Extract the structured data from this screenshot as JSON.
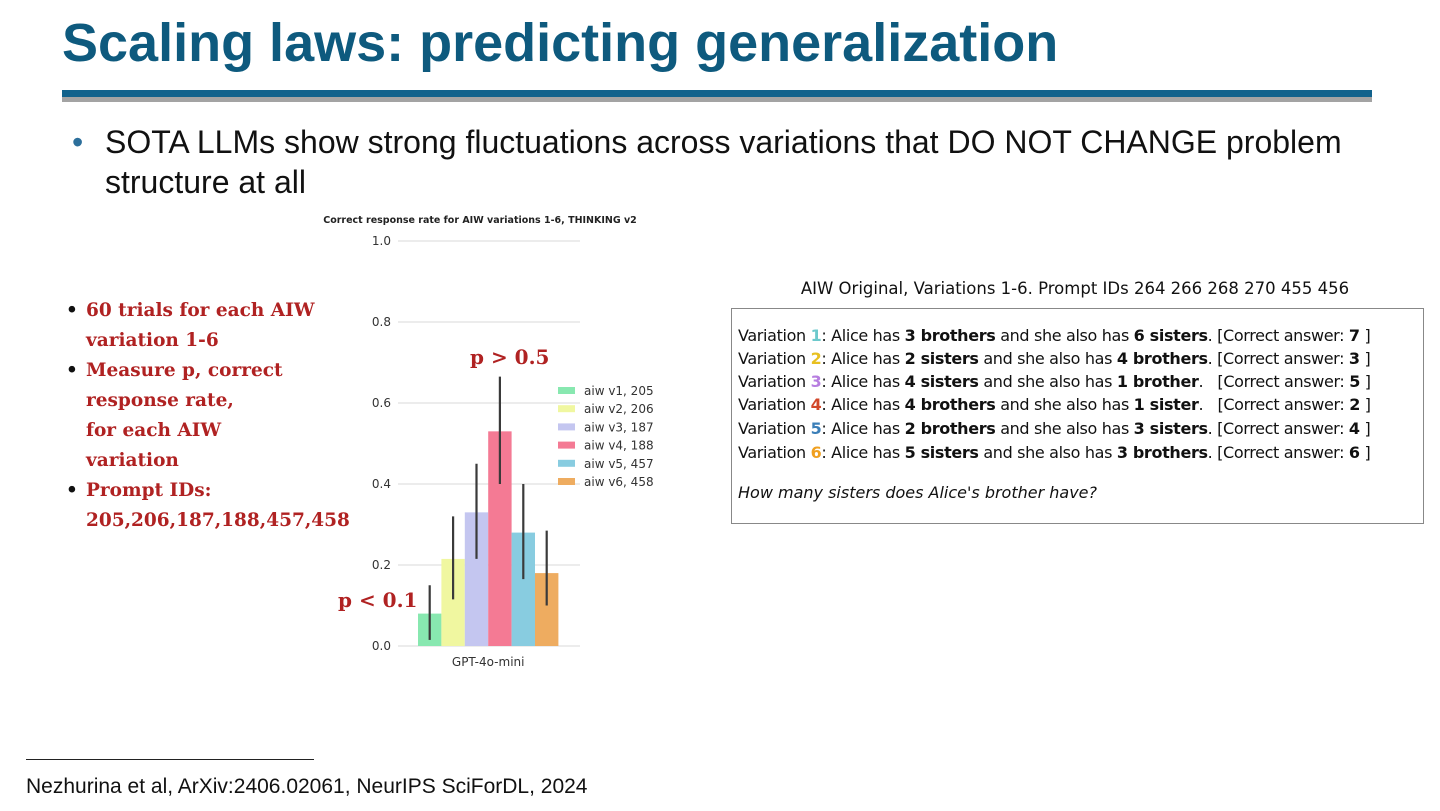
{
  "title": "Scaling laws: predicting generalization",
  "main_bullet": "SOTA LLMs show strong fluctuations across variations that DO NOT CHANGE problem structure at all",
  "notes": [
    {
      "lines": [
        "60 trials for each AIW",
        "variation 1-6"
      ]
    },
    {
      "lines": [
        "Measure p, correct",
        "response rate,",
        "for each AIW",
        "variation"
      ]
    },
    {
      "lines": [
        "Prompt IDs:",
        "205,206,187,188,457,458"
      ]
    }
  ],
  "annotations": {
    "high": "p > 0.5",
    "low": "p < 0.1"
  },
  "chart_data": {
    "type": "bar",
    "title": "Correct response rate for AIW variations 1-6, THINKING v2",
    "categories": [
      "GPT-4o-mini"
    ],
    "ylim": [
      0,
      1.0
    ],
    "yticks": [
      "0.0",
      "0.2",
      "0.4",
      "0.6",
      "0.8",
      "1.0"
    ],
    "grid": true,
    "legend_position": "right",
    "series": [
      {
        "name": "aiw v1, 205",
        "values": [
          0.08
        ],
        "err_low": [
          0.015
        ],
        "err_high": [
          0.15
        ],
        "color": "#88e8b0"
      },
      {
        "name": "aiw v2, 206",
        "values": [
          0.215
        ],
        "err_low": [
          0.115
        ],
        "err_high": [
          0.32
        ],
        "color": "#f0f7a0"
      },
      {
        "name": "aiw v3, 187",
        "values": [
          0.33
        ],
        "err_low": [
          0.215
        ],
        "err_high": [
          0.45
        ],
        "color": "#c4c6f0"
      },
      {
        "name": "aiw v4, 188",
        "values": [
          0.53
        ],
        "err_low": [
          0.4
        ],
        "err_high": [
          0.665
        ],
        "color": "#f47a94"
      },
      {
        "name": "aiw v5, 457",
        "values": [
          0.28
        ],
        "err_low": [
          0.165
        ],
        "err_high": [
          0.4
        ],
        "color": "#88cce0"
      },
      {
        "name": "aiw v6, 458",
        "values": [
          0.18
        ],
        "err_low": [
          0.1
        ],
        "err_high": [
          0.285
        ],
        "color": "#eeac60"
      }
    ]
  },
  "aiw_panel": {
    "caption": "AIW Original, Variations 1-6. Prompt IDs  264 266 268 270 455 456",
    "variations": [
      {
        "label": "Variation ",
        "num": "1",
        "num_color": "#6cc9cc",
        "pre": ": Alice has ",
        "b1": "3 brothers",
        "mid": " and she also has ",
        "b2": "6 sisters",
        "post": ". [Correct answer: ",
        "ans": "7",
        "end": " ]"
      },
      {
        "label": "Variation ",
        "num": "2",
        "num_color": "#e8c020",
        "pre": ": Alice has ",
        "b1": "2 sisters",
        "mid": " and she also has ",
        "b2": "4 brothers",
        "post": ". [Correct answer: ",
        "ans": "3",
        "end": " ]"
      },
      {
        "label": "Variation ",
        "num": "3",
        "num_color": "#b77ee0",
        "pre": ": Alice has ",
        "b1": "4 sisters",
        "mid": " and she also has ",
        "b2": "1 brother",
        "post": ".   [Correct answer: ",
        "ans": "5",
        "end": " ]"
      },
      {
        "label": "Variation ",
        "num": "4",
        "num_color": "#d2472a",
        "pre": ": Alice has ",
        "b1": "4 brothers",
        "mid": " and she also has ",
        "b2": "1 sister",
        "post": ".   [Correct answer: ",
        "ans": "2",
        "end": " ]"
      },
      {
        "label": "Variation ",
        "num": "5",
        "num_color": "#3b7fb8",
        "pre": ": Alice has ",
        "b1": "2 brothers",
        "mid": " and she also has ",
        "b2": "3 sisters",
        "post": ". [Correct answer: ",
        "ans": "4",
        "end": " ]"
      },
      {
        "label": "Variation ",
        "num": "6",
        "num_color": "#f0a020",
        "pre": ": Alice has ",
        "b1": "5 sisters",
        "mid": " and she also has ",
        "b2": "3 brothers",
        "post": ". [Correct answer: ",
        "ans": "6",
        "end": " ]"
      }
    ],
    "question": "How many sisters does Alice's brother have?"
  },
  "footnote": "Nezhurina et al, ArXiv:2406.02061, NeurIPS SciForDL, 2024"
}
